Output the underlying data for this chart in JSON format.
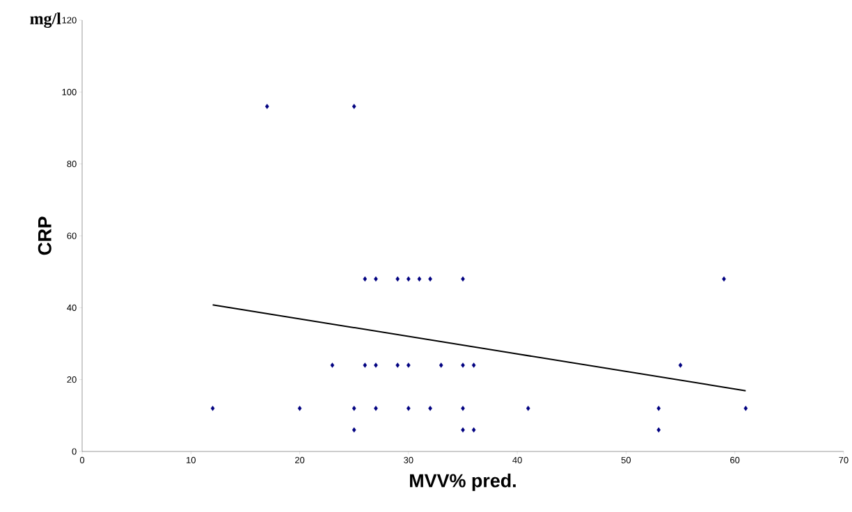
{
  "chart_data": {
    "type": "scatter",
    "xlabel": "MVV% pred.",
    "ylabel": "CRP",
    "annotations": [
      "mg/l"
    ],
    "xlim": [
      0,
      70
    ],
    "ylim": [
      0,
      120
    ],
    "xticks": [
      0,
      10,
      20,
      30,
      40,
      50,
      60,
      70
    ],
    "yticks": [
      0,
      20,
      40,
      60,
      80,
      100,
      120
    ],
    "grid": false,
    "series": [
      {
        "marker": "diamond",
        "color": "#000080",
        "x": [
          12,
          17,
          25,
          26,
          27,
          29,
          30,
          31,
          32,
          35,
          59,
          23,
          26,
          27,
          29,
          30,
          33,
          35,
          36,
          55,
          20,
          25,
          27,
          30,
          32,
          35,
          41,
          53,
          61,
          25,
          35,
          36,
          53
        ],
        "values": [
          12,
          96,
          96,
          48,
          48,
          48,
          48,
          48,
          48,
          48,
          48,
          24,
          24,
          24,
          24,
          24,
          24,
          24,
          24,
          24,
          12,
          12,
          12,
          12,
          12,
          12,
          12,
          12,
          12,
          6,
          6,
          6,
          6
        ]
      },
      {
        "type": "line",
        "marker": "none",
        "color": "#000000",
        "x": [
          12,
          61
        ],
        "values": [
          40.8,
          16.9
        ]
      }
    ]
  }
}
